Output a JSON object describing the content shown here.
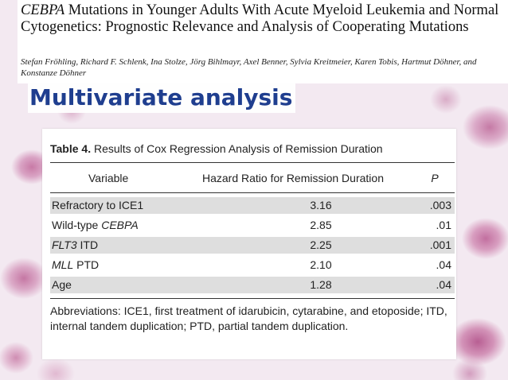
{
  "paper": {
    "title_gene": "CEBPA",
    "title_rest": " Mutations in Younger Adults With Acute Myeloid Leukemia and Normal Cytogenetics: Prognostic Relevance and Analysis of Cooperating Mutations",
    "authors": "Stefan Fröhling, Richard F. Schlenk, Ina Stolze, Jörg Bihlmayr, Axel Benner, Sylvia Kreitmeier, Karen Tobis, Hartmut Döhner, and Konstanze Döhner"
  },
  "slide": {
    "heading": "Multivariate analysis"
  },
  "table": {
    "caption_label": "Table 4.",
    "caption_text": " Results of Cox Regression Analysis of Remission Duration",
    "headers": {
      "variable": "Variable",
      "hazard_ratio": "Hazard Ratio for Remission Duration",
      "p": "P"
    },
    "rows": [
      {
        "var_italic": "",
        "var_plain": "Refractory to ICE1",
        "hr": "3.16",
        "p": ".003"
      },
      {
        "var_italic": "CEBPA",
        "var_prefix": "Wild-type ",
        "var_plain": "",
        "hr": "2.85",
        "p": ".01"
      },
      {
        "var_italic": "FLT3",
        "var_plain": " ITD",
        "hr": "2.25",
        "p": ".001"
      },
      {
        "var_italic": "MLL",
        "var_plain": " PTD",
        "hr": "2.10",
        "p": ".04"
      },
      {
        "var_italic": "",
        "var_plain": "Age",
        "hr": "1.28",
        "p": ".04"
      }
    ],
    "footnote": "Abbreviations: ICE1, first treatment of idarubicin, cytarabine, and etoposide; ITD, internal tandem duplication; PTD, partial tandem duplication."
  }
}
